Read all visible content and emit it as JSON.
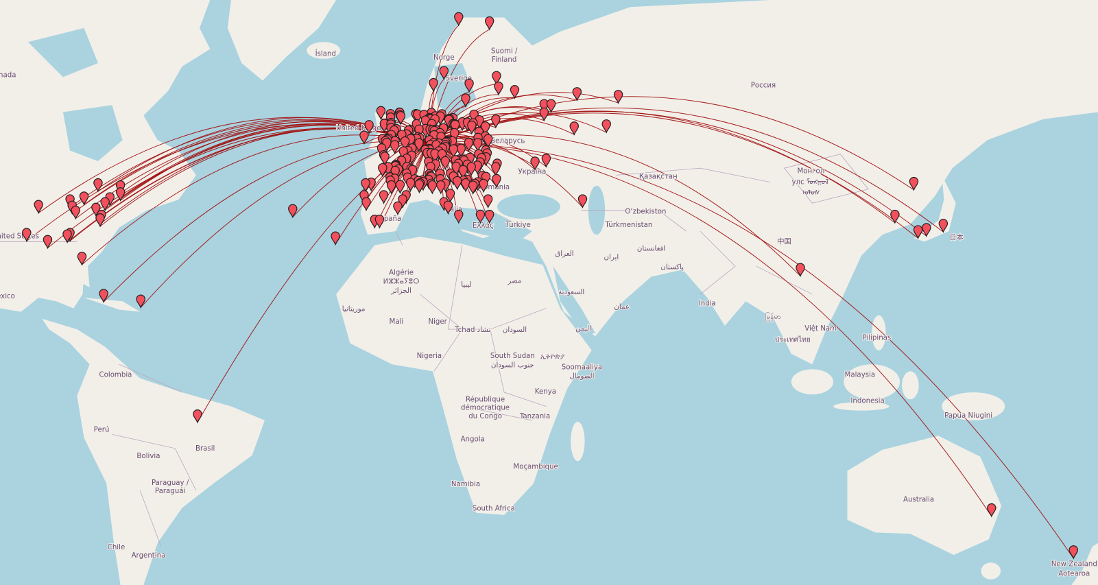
{
  "map": {
    "colors": {
      "water": "#aad3df",
      "land": "#f2efe9",
      "route": "#a10d0d",
      "marker": "#f2505c",
      "label": "#6b4f72"
    },
    "marker_icon": "map-pin-icon",
    "labels": {
      "iceland": "Ísland",
      "norway": "Norge",
      "sweden": "Sverige",
      "finland": "Suomi /",
      "finland2": "Finland",
      "russia": "Россия",
      "belarus": "Беларусь",
      "ukraine": "Україна",
      "romania": "România",
      "italy": "Italia",
      "spain": "España",
      "uk": "United Kingdom",
      "greece": "Ελλάς",
      "turkey": "Türkiye",
      "kazakhstan": "Қазақстан",
      "uzbekistan": "O‘zbekiston",
      "turkmenistan": "Türkmenistan",
      "mongolia1": "Монгол",
      "mongolia2": "улс ᠮᠣᠩᠭᠣᠯ",
      "mongolia3": "ᠤᠯᠤᠰ",
      "china": "中国",
      "japan": "日本",
      "india": "India",
      "afghanistan": "افغانستان",
      "pakistan": "پاکستان",
      "iran": "ایران",
      "iraq": "العراق",
      "egypt": "مصر",
      "libya": "ليبيا",
      "algeria1": "Algérie",
      "algeria2": "ⵍⵣⵣⴰⵢⴻⵔ",
      "algeria3": "الجزائر",
      "mauritania": "موريتانيا",
      "mali": "Mali",
      "niger": "Niger",
      "chad": "Tchad تشاد",
      "sudan": "السودان",
      "nigeria": "Nigeria",
      "south_sudan1": "South Sudan",
      "south_sudan2": "جنوب السودان",
      "ethiopia": "ኢትዮጵያ",
      "somalia1": "Soomaaliya",
      "somalia2": "الصومال",
      "kenya": "Kenya",
      "drc1": "République",
      "drc2": "démocratique",
      "drc3": "du Congo",
      "tanzania": "Tanzania",
      "angola": "Angola",
      "mozambique": "Moçambique",
      "namibia": "Namibia",
      "south_africa": "South Africa",
      "colombia": "Colombia",
      "peru": "Perú",
      "bolivia": "Bolivia",
      "brazil": "Brasil",
      "paraguay1": "Paraguay /",
      "paraguay2": "Paraguái",
      "chile": "Chile",
      "argentina": "Argentina",
      "usa": "United States",
      "canada": "Canada",
      "mexico": "Mexico",
      "saudi": "السعودية",
      "yemen": "اليمن",
      "oman": "عمان",
      "vietnam": "Việt Nam",
      "thailand": "ประเทศไทย",
      "myanmar": "မြန်မာ",
      "philippines": "Pilipinas",
      "malaysia": "Malaysia",
      "indonesia": "Indonesia",
      "png": "Papua Niugini",
      "australia": "Australia",
      "nz1": "New Zealand",
      "nz2": "Aotearoa"
    }
  }
}
